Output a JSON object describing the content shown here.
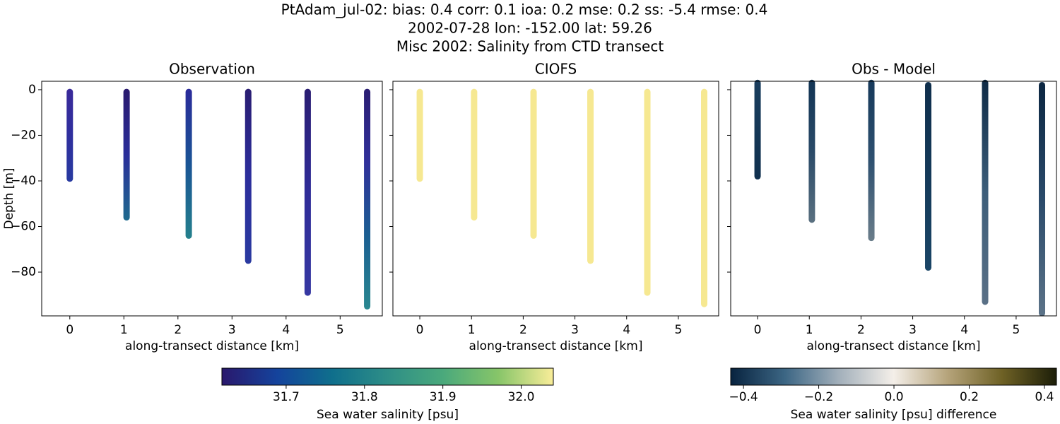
{
  "title": [
    "PtAdam_jul-02: bias: 0.4  corr: 0.1  ioa: 0.2  mse: 0.2  ss: -5.4  rmse: 0.4",
    "2002-07-28 lon: -152.00 lat: 59.26",
    "Misc 2002: Salinity from CTD transect"
  ],
  "chart_data": [
    {
      "type": "scatter",
      "title": "Observation",
      "xlabel": "along-transect distance [km]",
      "ylabel": "Depth [m]",
      "xlim": [
        -0.52,
        5.78
      ],
      "ylim": [
        -99.2,
        3.7
      ],
      "xticks": [
        0,
        1,
        2,
        3,
        4,
        5
      ],
      "yticks": [
        0,
        {
          "value": -20,
          "label": "−20"
        },
        {
          "value": -40,
          "label": "−40"
        },
        {
          "value": -60,
          "label": "−60"
        },
        {
          "value": -80,
          "label": "−80"
        }
      ],
      "series": [
        {
          "x": 0,
          "top": -1,
          "bottom": -39,
          "colors": [
            "#3a2a9a",
            "#2f2f9e",
            "#283aa0"
          ]
        },
        {
          "x": 1.05,
          "top": -1,
          "bottom": -56,
          "colors": [
            "#2a1a6e",
            "#2a2e9a",
            "#1f6b8e"
          ]
        },
        {
          "x": 2.2,
          "top": -1,
          "bottom": -64,
          "colors": [
            "#2a2a9a",
            "#1a5495",
            "#24808c"
          ]
        },
        {
          "x": 3.3,
          "top": -1,
          "bottom": -75,
          "colors": [
            "#2a1d72",
            "#2c2e9c",
            "#2a3aa0"
          ]
        },
        {
          "x": 4.4,
          "top": -1,
          "bottom": -89,
          "colors": [
            "#2a1d72",
            "#2f2c98",
            "#3638a2"
          ]
        },
        {
          "x": 5.5,
          "top": -1,
          "bottom": -95,
          "colors": [
            "#2a1d72",
            "#30309a",
            "#1b5f92",
            "#2a8890"
          ]
        }
      ]
    },
    {
      "type": "scatter",
      "title": "CIOFS",
      "xlabel": "along-transect distance [km]",
      "sharey": true,
      "xlim": [
        -0.52,
        5.78
      ],
      "xticks": [
        0,
        1,
        2,
        3,
        4,
        5
      ],
      "series": [
        {
          "x": 0,
          "top": -1,
          "bottom": -39,
          "colors": [
            "#f6e891",
            "#f6e891"
          ]
        },
        {
          "x": 1.05,
          "top": -1,
          "bottom": -56,
          "colors": [
            "#f6e891",
            "#f6e891"
          ]
        },
        {
          "x": 2.2,
          "top": -1,
          "bottom": -64,
          "colors": [
            "#f6e891",
            "#f6e891"
          ]
        },
        {
          "x": 3.3,
          "top": -1,
          "bottom": -75,
          "colors": [
            "#f6e891",
            "#f6e891"
          ]
        },
        {
          "x": 4.4,
          "top": -1,
          "bottom": -89,
          "colors": [
            "#f6e891",
            "#f6e891"
          ]
        },
        {
          "x": 5.5,
          "top": -1,
          "bottom": -94,
          "colors": [
            "#f6e891",
            "#f6e891"
          ]
        }
      ]
    },
    {
      "type": "scatter",
      "title": "Obs - Model",
      "xlabel": "along-transect distance [km]",
      "sharey": true,
      "xlim": [
        -0.52,
        5.78
      ],
      "xticks": [
        0,
        1,
        2,
        3,
        4,
        5
      ],
      "series": [
        {
          "x": 0,
          "top": 3,
          "bottom": -38,
          "colors": [
            "#1a3e5e",
            "#10304e"
          ]
        },
        {
          "x": 1.05,
          "top": 3,
          "bottom": -57,
          "colors": [
            "#123454",
            "#2a4a68",
            "#5a7080"
          ]
        },
        {
          "x": 2.2,
          "top": 3,
          "bottom": -65,
          "colors": [
            "#16395a",
            "#2e5070",
            "#6a7d8a"
          ]
        },
        {
          "x": 3.3,
          "top": 2,
          "bottom": -78,
          "colors": [
            "#0f2e4c",
            "#1a4566"
          ]
        },
        {
          "x": 4.4,
          "top": 3,
          "bottom": -93,
          "colors": [
            "#0e2a46",
            "#3d5e7a",
            "#5a7086"
          ]
        },
        {
          "x": 5.5,
          "top": 2,
          "bottom": -98,
          "colors": [
            "#0b2641",
            "#2a4a6a",
            "#5c7388"
          ]
        }
      ]
    }
  ],
  "colorbars": [
    {
      "label": "Sea water salinity [psu]",
      "lim": [
        31.618,
        32.041
      ],
      "ticks": [
        31.7,
        31.8,
        31.9,
        {
          "value": 32,
          "label": "32.0"
        }
      ],
      "colors": [
        "#2a186c",
        "#14439c",
        "#0f6f8c",
        "#2e8e87",
        "#4aa97c",
        "#87c569",
        "#f9ed99"
      ]
    },
    {
      "label": "Sea water salinity [psu] difference",
      "lim": [
        -0.434,
        0.432
      ],
      "ticks": [
        {
          "value": -0.4,
          "label": "−0.4"
        },
        {
          "value": -0.2,
          "label": "−0.2"
        },
        {
          "value": 0,
          "label": "0.0"
        },
        0.2,
        0.4
      ],
      "colors": [
        "#08233f",
        "#3c6684",
        "#a3b0bb",
        "#f4efe9",
        "#b5a37a",
        "#6e6125",
        "#1c1e08"
      ]
    }
  ]
}
